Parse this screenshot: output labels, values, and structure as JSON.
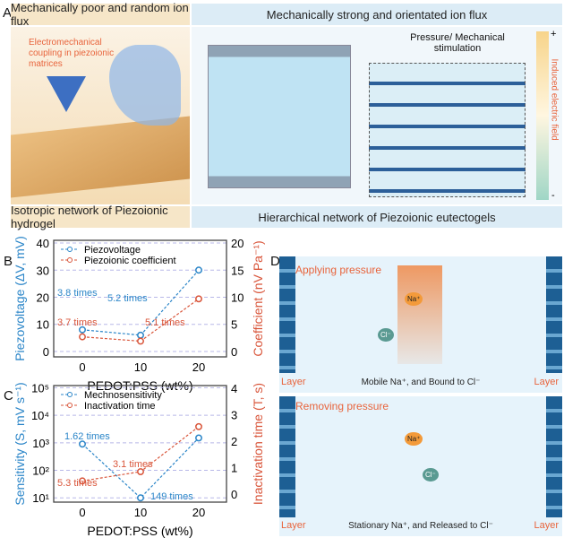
{
  "panel_labels": {
    "a": "A",
    "b": "B",
    "c": "C",
    "d": "D"
  },
  "panel_a": {
    "header_left": "Mechanically poor and random ion flux",
    "header_right": "Mechanically strong and orientated ion flux",
    "footer_left": "Isotropic network of Piezoionic hydrogel",
    "footer_right": "Hierarchical network of Piezoionic eutectogels",
    "callout": "Electromechanical coupling in piezoionic matrices",
    "pressure_label": "Pressure/ Mechanical stimulation",
    "field_label": "Induced electric field",
    "field_plus": "+",
    "field_minus": "-"
  },
  "chart_data": [
    {
      "type": "line",
      "panel": "B",
      "xlabel": "PEDOT:PSS (wt%)",
      "ylabel": "Piezovoltage (ΔV, mV)",
      "y2label": "Coefficient (nV Pa⁻¹)",
      "x": [
        0,
        10,
        20
      ],
      "xticks": [
        "0",
        "10",
        "20"
      ],
      "ylim": [
        -2,
        41
      ],
      "yticks": [
        "0",
        "10",
        "20",
        "30",
        "40"
      ],
      "y2lim": [
        -1,
        20.5
      ],
      "y2ticks": [
        "0",
        "5",
        "10",
        "15",
        "20"
      ],
      "grid": true,
      "legend": "top-left",
      "series": [
        {
          "name": "Piezovoltage",
          "axis": "left",
          "values": [
            8,
            6,
            30
          ],
          "color": "#2a85c8"
        },
        {
          "name": "Piezoionic coefficient",
          "axis": "right",
          "values": [
            2.7,
            1.9,
            9.7
          ],
          "color": "#d9553a"
        }
      ],
      "annotations": [
        {
          "text": "3.8 times",
          "color": "#2a85c8"
        },
        {
          "text": "5.2 times",
          "color": "#2a85c8"
        },
        {
          "text": "3.7 times",
          "color": "#d9553a"
        },
        {
          "text": "5.1 times",
          "color": "#d9553a"
        }
      ]
    },
    {
      "type": "line",
      "panel": "C",
      "xlabel": "PEDOT:PSS (wt%)",
      "ylabel": "Sensitivity (S, mV s⁻¹)",
      "y2label": "Inactivation time (T, s)",
      "x": [
        0,
        10,
        20
      ],
      "xticks": [
        "0",
        "10",
        "20"
      ],
      "yscale": "log",
      "ylim": [
        7,
        120000
      ],
      "yticks": [
        "10¹",
        "10²",
        "10³",
        "10⁴",
        "10⁵"
      ],
      "y2lim": [
        -0.3,
        4.1
      ],
      "y2ticks": [
        "0",
        "1",
        "2",
        "3",
        "4"
      ],
      "grid": true,
      "legend": "top-left",
      "series": [
        {
          "name": "Mechnosensitivity",
          "axis": "left",
          "values": [
            900,
            10,
            1500
          ],
          "color": "#2a85c8"
        },
        {
          "name": "Inactivation time",
          "axis": "right",
          "values": [
            0.5,
            0.85,
            2.55
          ],
          "color": "#d9553a"
        }
      ],
      "annotations": [
        {
          "text": "1.62 times",
          "color": "#2a85c8"
        },
        {
          "text": "149 times",
          "color": "#2a85c8"
        },
        {
          "text": "5.3 times",
          "color": "#d9553a"
        },
        {
          "text": "3.1 times",
          "color": "#d9553a"
        }
      ]
    }
  ],
  "panel_d": {
    "top_title": "Applying pressure",
    "top_caption": "Mobile Na⁺, and Bound to Cl⁻",
    "bottom_title": "Removing pressure",
    "bottom_caption": "Stationary Na⁺, and Released to Cl⁻",
    "layer": "Layer",
    "na": "Na⁺",
    "cl": "Cl⁻"
  }
}
